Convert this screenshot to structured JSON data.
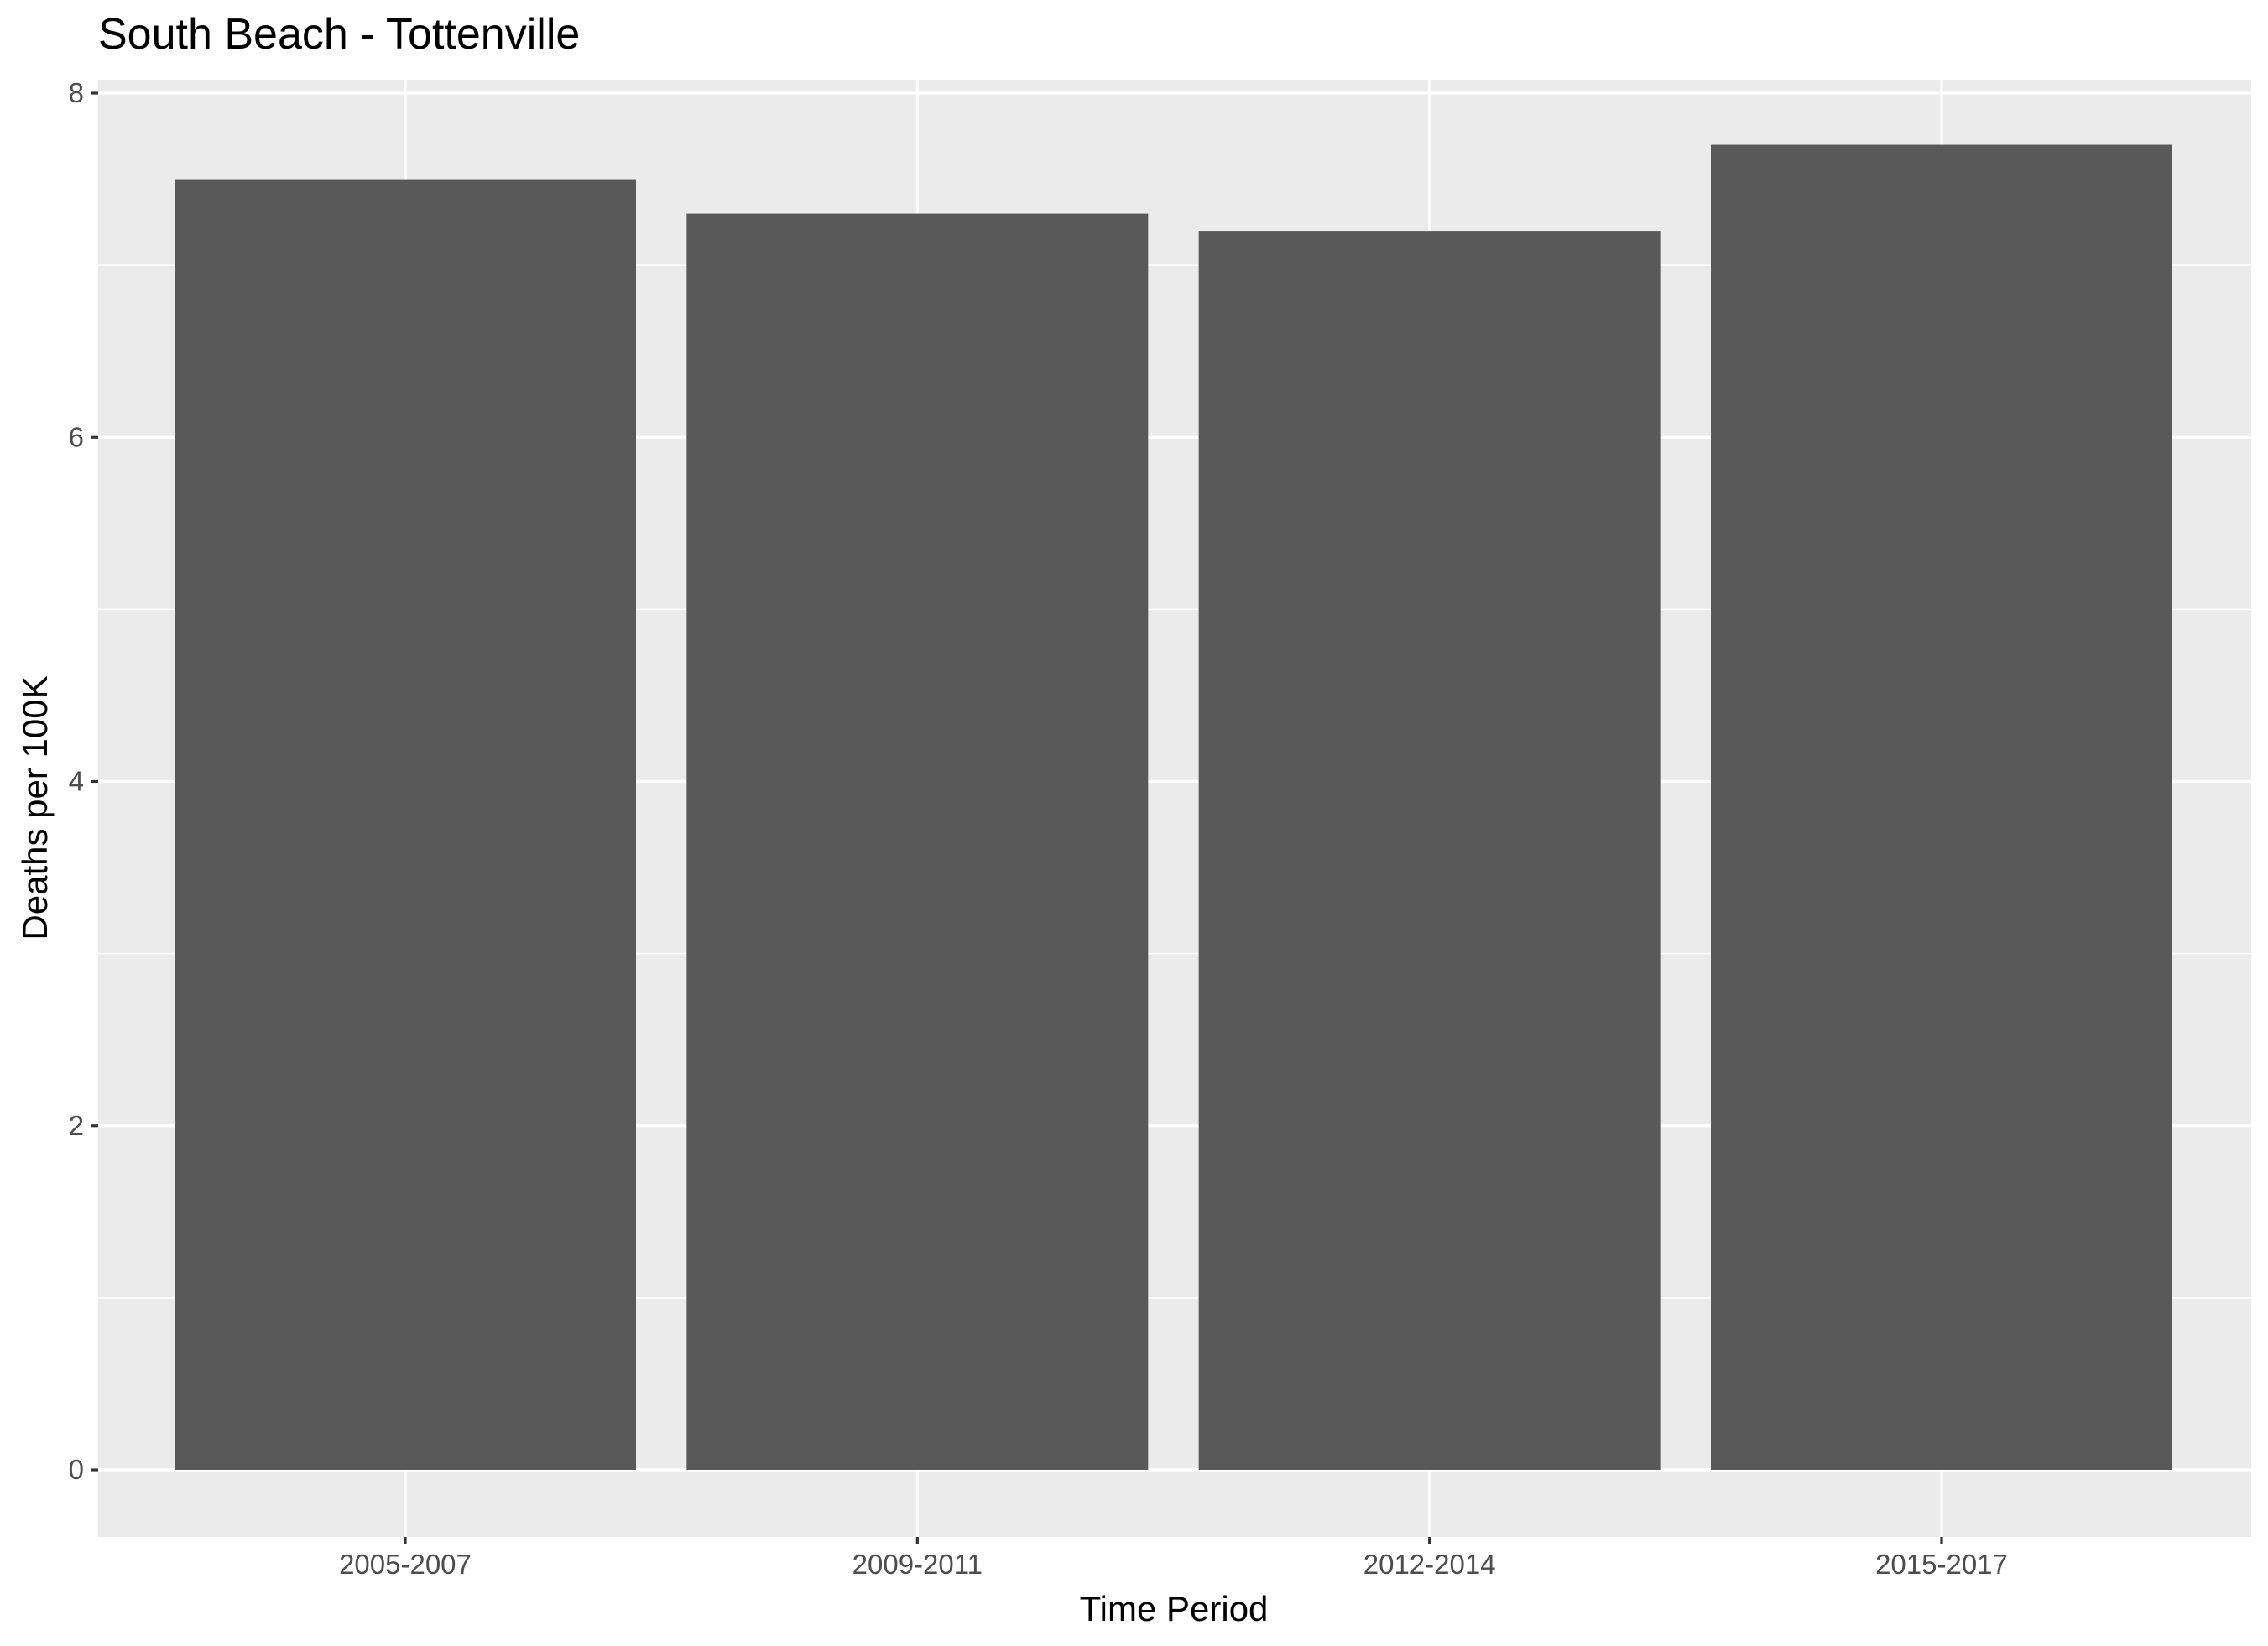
{
  "chart_data": {
    "type": "bar",
    "title": "South Beach - Tottenville",
    "xlabel": "Time Period",
    "ylabel": "Deaths per 100K",
    "categories": [
      "2005-2007",
      "2009-2011",
      "2012-2014",
      "2015-2017"
    ],
    "values": [
      7.5,
      7.3,
      7.2,
      7.7
    ],
    "ylim": [
      -0.4,
      8.0
    ],
    "y_ticks": [
      0,
      2,
      4,
      6,
      8
    ],
    "y_tick_labels": [
      "0",
      "2",
      "4",
      "6",
      "8"
    ],
    "grid": true,
    "legend": "none",
    "colors": {
      "bar": "#595959",
      "panel": "#ebebeb",
      "grid": "#ffffff",
      "tick": "#333333"
    }
  }
}
